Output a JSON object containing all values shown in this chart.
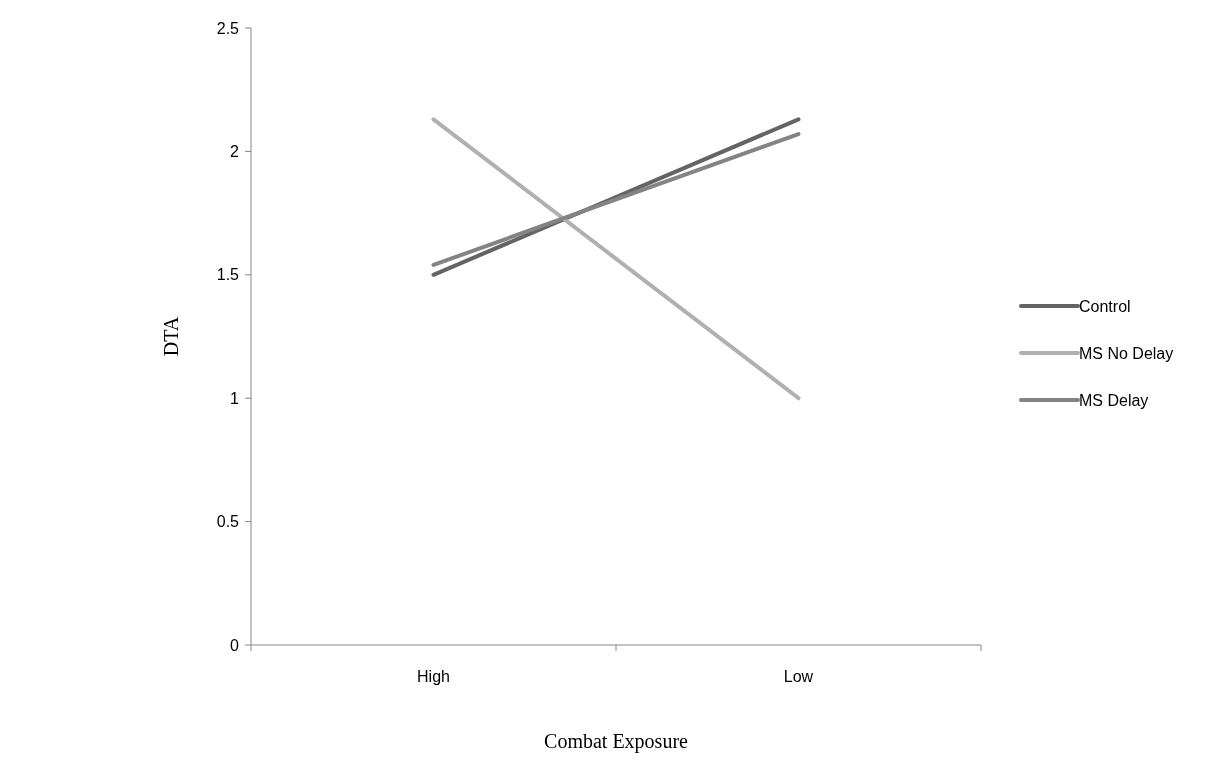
{
  "chart_data": {
    "type": "line",
    "xlabel": "Combat Exposure",
    "ylabel": "DTA",
    "categories": [
      "High",
      "Low"
    ],
    "series": [
      {
        "name": "Control",
        "color": "#646464",
        "values": [
          1.5,
          2.13
        ]
      },
      {
        "name": "MS No Delay",
        "color": "#b0b0b0",
        "values": [
          2.13,
          1.0
        ]
      },
      {
        "name": "MS Delay",
        "color": "#848484",
        "values": [
          1.54,
          2.07
        ]
      }
    ],
    "ylim": [
      0,
      2.5
    ],
    "yticks": [
      0,
      0.5,
      1,
      1.5,
      2,
      2.5
    ],
    "grid": false,
    "legend": "right",
    "marker": "none",
    "line_style": "solid"
  }
}
